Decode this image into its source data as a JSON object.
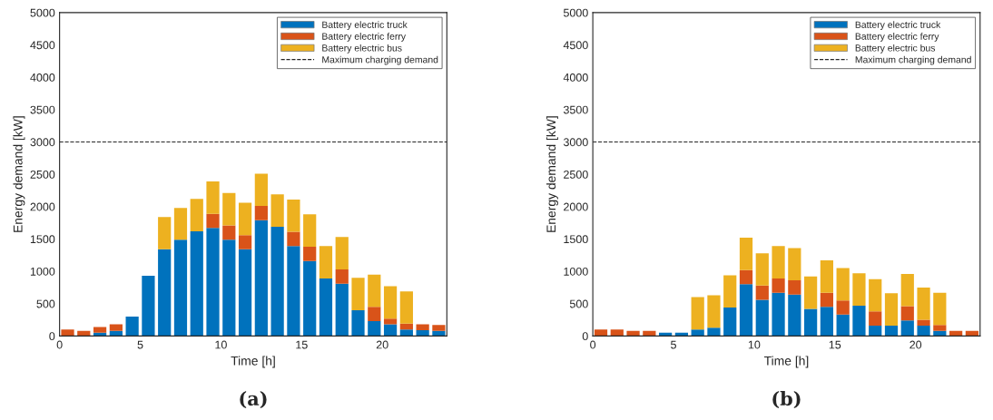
{
  "chart_data": [
    {
      "type": "bar",
      "stacked": true,
      "xlabel": "Time [h]",
      "ylabel": "Energy demand [kW]",
      "annotations": [
        "(a)"
      ],
      "x": [
        0.5,
        1.5,
        2.5,
        3.5,
        4.5,
        5.5,
        6.5,
        7.5,
        8.5,
        9.5,
        10.5,
        11.5,
        12.5,
        13.5,
        14.5,
        15.5,
        16.5,
        17.5,
        18.5,
        19.5,
        20.5,
        21.5,
        22.5,
        23.5
      ],
      "series": [
        {
          "name": "Battery electric truck",
          "color": "#0072bd",
          "values": [
            null,
            0,
            50,
            80,
            300,
            930,
            1340,
            1490,
            1620,
            1670,
            1490,
            1340,
            1790,
            1690,
            1390,
            1160,
            890,
            810,
            400,
            230,
            180,
            100,
            90,
            80
          ]
        },
        {
          "name": "Battery electric ferry",
          "color": "#d95319",
          "values": [
            100,
            80,
            90,
            100,
            0,
            0,
            0,
            0,
            0,
            220,
            220,
            220,
            220,
            0,
            220,
            220,
            0,
            220,
            0,
            220,
            90,
            90,
            90,
            90
          ]
        },
        {
          "name": "Battery electric bus",
          "color": "#edb120",
          "values": [
            0,
            0,
            0,
            0,
            0,
            0,
            500,
            490,
            500,
            500,
            500,
            500,
            500,
            500,
            500,
            500,
            500,
            500,
            500,
            500,
            500,
            500,
            0,
            0
          ]
        }
      ],
      "ref_lines": [
        {
          "axis": "y",
          "value": 3000,
          "label": "Maximum charging demand",
          "color": "#262626",
          "line_style": "dashed"
        }
      ],
      "xlim": [
        0,
        24
      ],
      "xticks": [
        0,
        5,
        10,
        15,
        20
      ],
      "ylim": [
        0,
        5000
      ],
      "yticks": [
        0,
        500,
        1000,
        1500,
        2000,
        2500,
        3000,
        3500,
        4000,
        4500,
        5000
      ],
      "legend": "top right"
    },
    {
      "type": "bar",
      "stacked": true,
      "xlabel": "Time [h]",
      "ylabel": "Energy demand [kW]",
      "annotations": [
        "(b)"
      ],
      "x": [
        0.5,
        1.5,
        2.5,
        3.5,
        4.5,
        5.5,
        6.5,
        7.5,
        8.5,
        9.5,
        10.5,
        11.5,
        12.5,
        13.5,
        14.5,
        15.5,
        16.5,
        17.5,
        18.5,
        19.5,
        20.5,
        21.5,
        22.5,
        23.5
      ],
      "series": [
        {
          "name": "Battery electric truck",
          "color": "#0072bd",
          "values": [
            null,
            null,
            0,
            0,
            50,
            50,
            100,
            130,
            440,
            800,
            560,
            670,
            640,
            420,
            450,
            330,
            470,
            160,
            160,
            240,
            160,
            80,
            0,
            0
          ]
        },
        {
          "name": "Battery electric ferry",
          "color": "#d95319",
          "values": [
            100,
            100,
            80,
            80,
            0,
            0,
            0,
            0,
            0,
            220,
            220,
            220,
            220,
            0,
            220,
            220,
            0,
            220,
            0,
            220,
            90,
            90,
            80,
            80
          ]
        },
        {
          "name": "Battery electric bus",
          "color": "#edb120",
          "values": [
            0,
            0,
            0,
            0,
            0,
            0,
            500,
            500,
            500,
            500,
            500,
            500,
            500,
            500,
            500,
            500,
            500,
            500,
            500,
            500,
            500,
            500,
            0,
            0
          ]
        }
      ],
      "ref_lines": [
        {
          "axis": "y",
          "value": 3000,
          "label": "Maximum charging demand",
          "color": "#262626",
          "line_style": "dashed"
        }
      ],
      "xlim": [
        0,
        24
      ],
      "xticks": [
        0,
        5,
        10,
        15,
        20
      ],
      "ylim": [
        0,
        5000
      ],
      "yticks": [
        0,
        500,
        1000,
        1500,
        2000,
        2500,
        3000,
        3500,
        4000,
        4500,
        5000
      ],
      "legend": "top right"
    }
  ]
}
